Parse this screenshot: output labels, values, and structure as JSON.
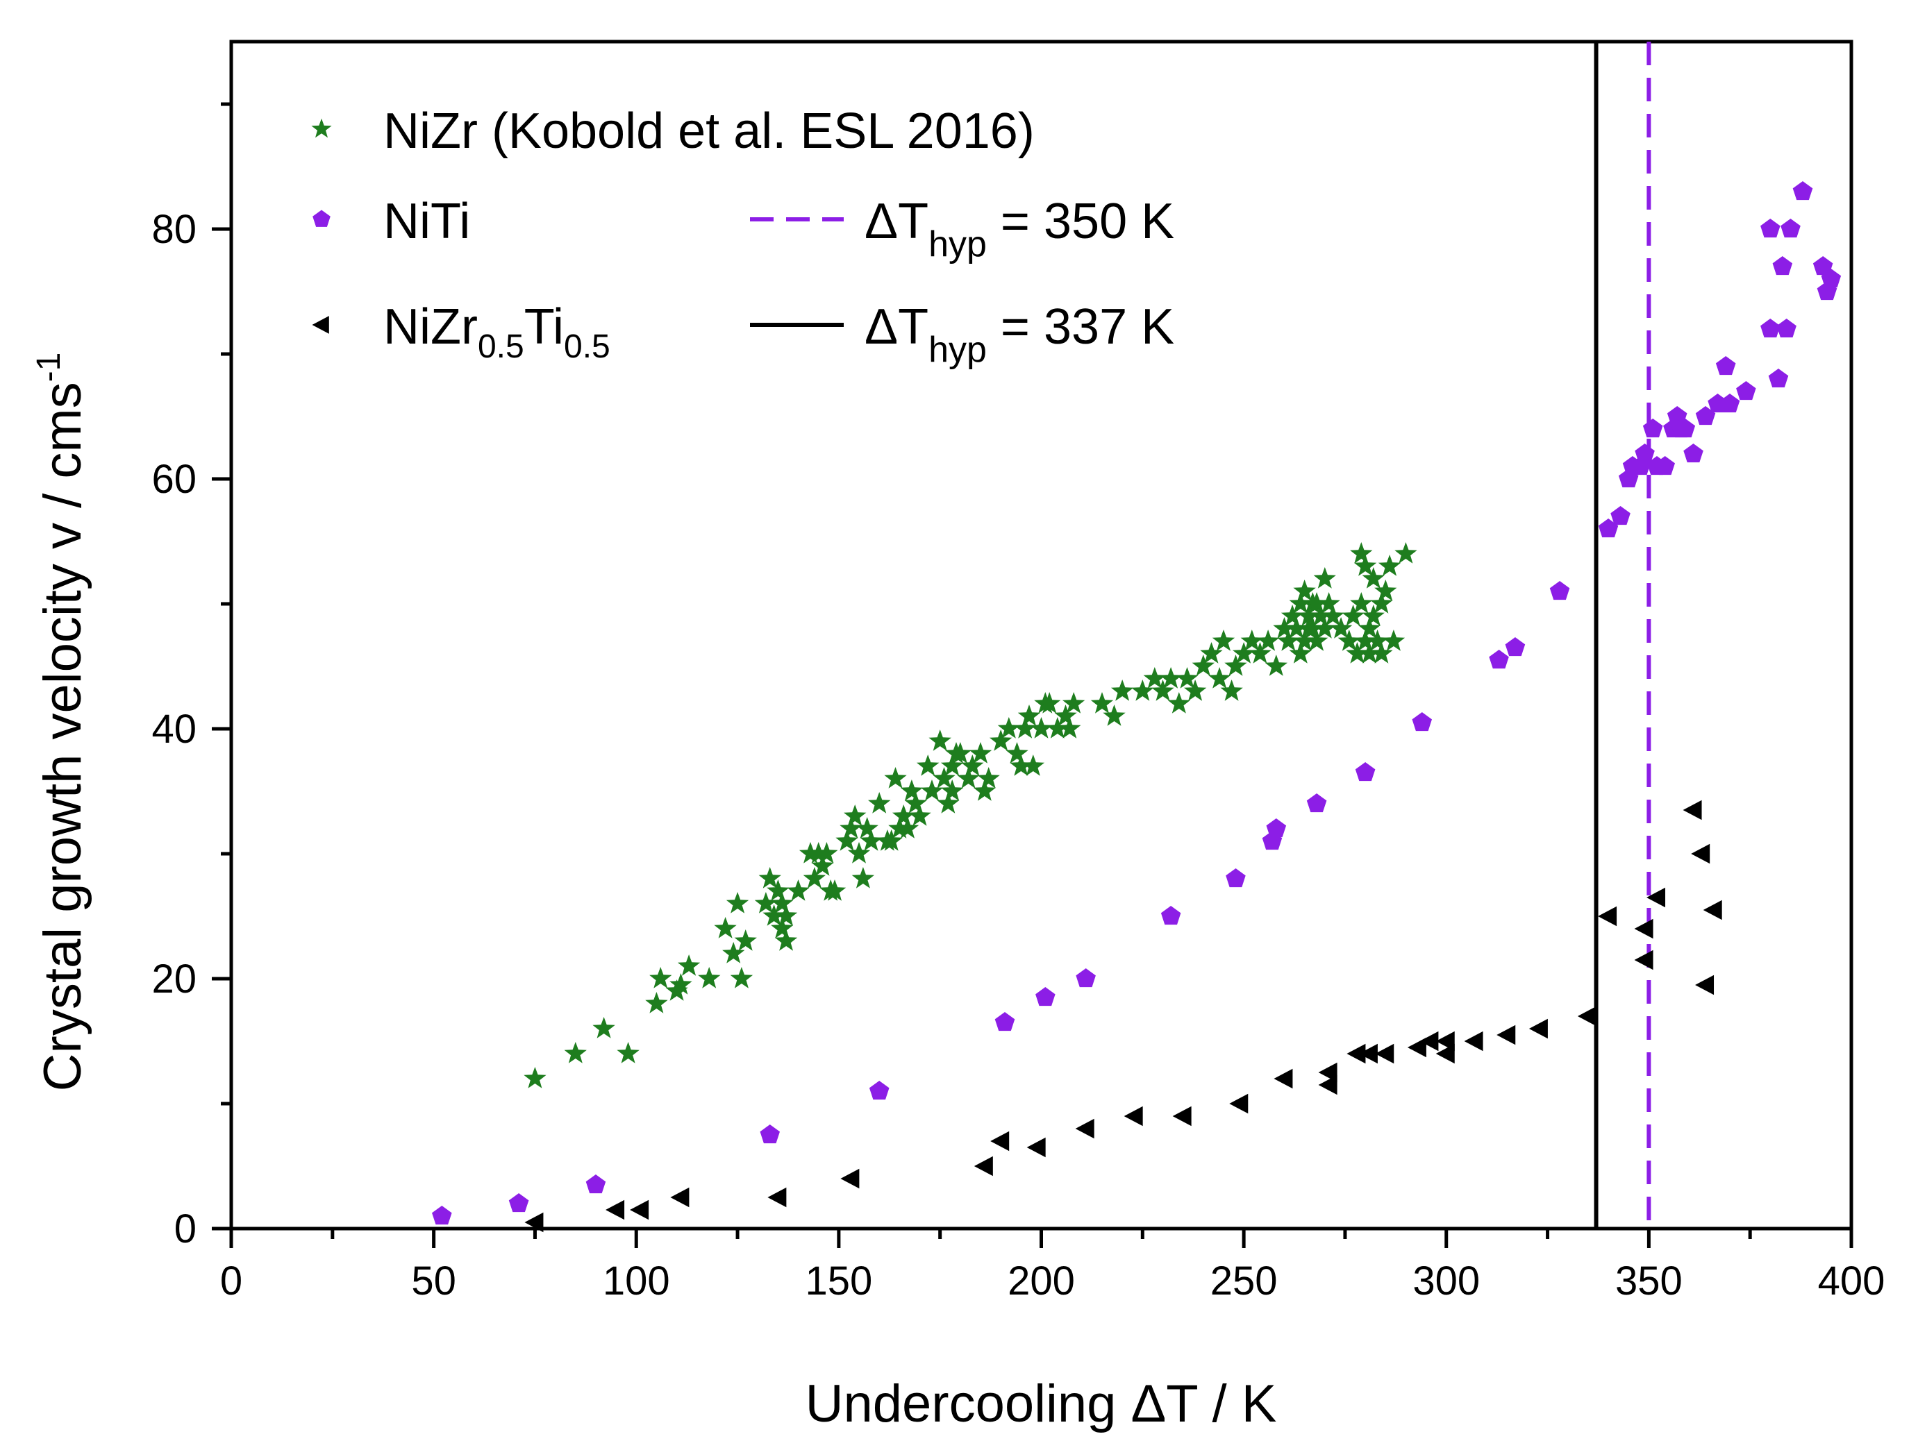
{
  "chart_data": {
    "type": "scatter",
    "xlabel": "Undercooling ΔT / K",
    "ylabel_main": "Crystal growth velocity v / cms",
    "ylabel_sup": "-1",
    "xlim": [
      0,
      400
    ],
    "ylim": [
      0,
      95
    ],
    "x_ticks": [
      0,
      50,
      100,
      150,
      200,
      250,
      300,
      350,
      400
    ],
    "y_ticks": [
      0,
      20,
      40,
      60,
      80
    ],
    "grid": false,
    "legend": [
      {
        "label": "NiZr (Kobold et al. ESL 2016)",
        "marker": "star",
        "color": "#1e7d1e"
      },
      {
        "label": "NiTi",
        "marker": "pentagon",
        "color": "#8c1ee6"
      },
      {
        "label_main": "NiZr",
        "sub1": "0.5",
        "mid": "Ti",
        "sub2": "0.5",
        "marker": "triangle-left",
        "color": "#000000"
      }
    ],
    "reference_lines": [
      {
        "x": 350,
        "style": "dashed",
        "color": "#8c1ee6",
        "label_main": "ΔT",
        "label_sub": "hyp",
        "label_rest": " = 350 K"
      },
      {
        "x": 337,
        "style": "solid",
        "color": "#000000",
        "label_main": "ΔT",
        "label_sub": "hyp",
        "label_rest": " = 337 K"
      }
    ],
    "series": [
      {
        "name": "NiZr (Kobold et al. ESL 2016)",
        "marker": "star",
        "color": "#1e7d1e",
        "x": [
          75,
          85,
          92,
          98,
          105,
          106,
          110,
          111,
          113,
          118,
          122,
          124,
          125,
          126,
          127,
          132,
          133,
          134,
          135,
          136,
          136,
          137,
          137,
          140,
          143,
          144,
          145,
          146,
          147,
          148,
          149,
          152,
          153,
          154,
          155,
          156,
          157,
          158,
          160,
          162,
          163,
          164,
          165,
          166,
          167,
          168,
          169,
          170,
          172,
          173,
          175,
          176,
          177,
          178,
          178,
          179,
          180,
          182,
          183,
          185,
          186,
          187,
          190,
          192,
          194,
          195,
          196,
          197,
          198,
          200,
          201,
          202,
          204,
          206,
          207,
          208,
          215,
          218,
          220,
          225,
          228,
          230,
          232,
          234,
          236,
          238,
          240,
          242,
          244,
          245,
          247,
          248,
          250,
          252,
          254,
          256,
          258,
          260,
          261,
          262,
          263,
          264,
          264,
          265,
          265,
          266,
          266,
          267,
          267,
          268,
          268,
          269,
          270,
          270,
          271,
          272,
          274,
          276,
          277,
          278,
          279,
          279,
          280,
          280,
          281,
          281,
          282,
          282,
          283,
          284,
          284,
          285,
          286,
          287,
          290
        ],
        "y": [
          12,
          14,
          16,
          14,
          18,
          20,
          19,
          19.5,
          21,
          20,
          24,
          22,
          26,
          20,
          23,
          26,
          28,
          25,
          27,
          26,
          24,
          25,
          23,
          27,
          30,
          28,
          30,
          29,
          30,
          27,
          27,
          31,
          32,
          33,
          30,
          28,
          32,
          31,
          34,
          31,
          31,
          36,
          32,
          33,
          32,
          35,
          34,
          33,
          37,
          35,
          39,
          36,
          34,
          35,
          37,
          38,
          38,
          36,
          37,
          38,
          35,
          36,
          39,
          40,
          38,
          37,
          40,
          41,
          37,
          40,
          42,
          42,
          40,
          41,
          40,
          42,
          42,
          41,
          43,
          43,
          44,
          43,
          44,
          42,
          44,
          43,
          45,
          46,
          44,
          47,
          43,
          45,
          46,
          47,
          46,
          47,
          45,
          48,
          47,
          49,
          48,
          46,
          50,
          47,
          51,
          48,
          49,
          50,
          48,
          47,
          50,
          49,
          52,
          48,
          50,
          49,
          48,
          47,
          49,
          46,
          50,
          54,
          47,
          53,
          48,
          46,
          52,
          49,
          47,
          50,
          46,
          51,
          53,
          47,
          54
        ]
      },
      {
        "name": "NiTi",
        "marker": "pentagon",
        "color": "#8c1ee6",
        "x": [
          52,
          71,
          90,
          133,
          160,
          191,
          201,
          211,
          232,
          248,
          257,
          258,
          268,
          280,
          294,
          313,
          317,
          328,
          340,
          343,
          345,
          346,
          348,
          349,
          351,
          352,
          354,
          356,
          357,
          358,
          359,
          361,
          364,
          367,
          369,
          370,
          374,
          380,
          380,
          382,
          383,
          384,
          385,
          388,
          393,
          394,
          395
        ],
        "y": [
          1,
          2,
          3.5,
          7.5,
          11,
          16.5,
          18.5,
          20,
          25,
          28,
          31,
          32,
          34,
          36.5,
          40.5,
          45.5,
          46.5,
          51,
          56,
          57,
          60,
          61,
          61,
          62,
          64,
          61,
          61,
          64,
          65,
          64,
          64,
          62,
          65,
          66,
          69,
          66,
          67,
          80,
          72,
          68,
          77,
          72,
          80,
          83,
          77,
          75,
          76
        ]
      },
      {
        "name": "NiZr0.5Ti0.5",
        "marker": "triangle-left",
        "color": "#000000",
        "x": [
          75,
          95,
          101,
          111,
          135,
          153,
          186,
          190,
          199,
          211,
          223,
          235,
          249,
          260,
          271,
          271,
          278,
          281,
          285,
          293,
          296,
          300,
          300,
          307,
          315,
          323,
          335,
          340,
          349,
          349,
          352,
          361,
          363,
          364,
          366
        ],
        "y": [
          0.5,
          1.5,
          1.5,
          2.5,
          2.5,
          4,
          5,
          7,
          6.5,
          8,
          9,
          9,
          10,
          12,
          11.5,
          12.5,
          14,
          14,
          14,
          14.5,
          15,
          14,
          15,
          15,
          15.5,
          16,
          17,
          25,
          24,
          21.5,
          26.5,
          33.5,
          30,
          19.5,
          25.5
        ]
      }
    ]
  }
}
